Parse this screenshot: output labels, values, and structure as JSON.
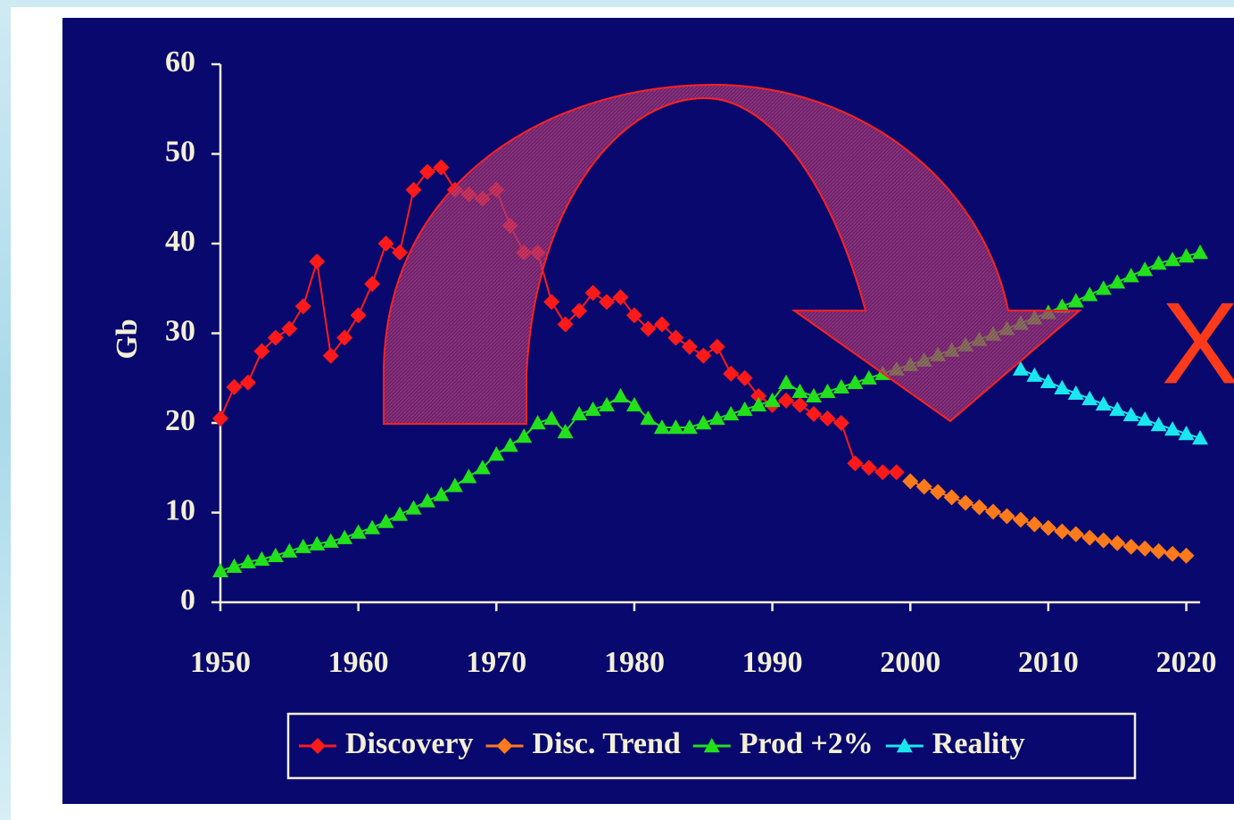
{
  "chart_data": {
    "type": "line",
    "y_label": "Gb",
    "annotation": "X",
    "xlim": [
      1950,
      2021
    ],
    "xticks": [
      1950,
      1960,
      1970,
      1980,
      1990,
      2000,
      2010,
      2020
    ],
    "ylim": [
      0,
      60
    ],
    "yticks": [
      0,
      10,
      20,
      30,
      40,
      50,
      60
    ],
    "series": [
      {
        "name": "Discovery",
        "color": "#ff1a1a",
        "marker": "diamond",
        "x": [
          1950,
          1951,
          1952,
          1953,
          1954,
          1955,
          1956,
          1957,
          1958,
          1959,
          1960,
          1961,
          1962,
          1963,
          1964,
          1965,
          1966,
          1967,
          1968,
          1969,
          1970,
          1971,
          1972,
          1973,
          1974,
          1975,
          1976,
          1977,
          1978,
          1979,
          1980,
          1981,
          1982,
          1983,
          1984,
          1985,
          1986,
          1987,
          1988,
          1989,
          1990,
          1991,
          1992,
          1993,
          1994,
          1995,
          1996,
          1997,
          1998,
          1999
        ],
        "values": [
          20.5,
          24,
          24.5,
          28,
          29.5,
          30.5,
          33,
          38,
          27.5,
          29.5,
          32,
          35.5,
          40,
          39,
          46,
          48,
          48.5,
          46,
          45.5,
          45,
          46,
          42,
          39,
          39,
          33.5,
          31,
          32.5,
          34.5,
          33.5,
          34,
          32,
          30.5,
          31,
          29.5,
          28.5,
          27.5,
          28.5,
          25.5,
          25,
          23,
          22,
          22.5,
          22,
          21,
          20.5,
          20,
          15.5,
          15,
          14.5,
          14.5
        ]
      },
      {
        "name": "Disc. Trend",
        "color": "#ff7a1a",
        "marker": "diamond",
        "x": [
          2000,
          2001,
          2002,
          2003,
          2004,
          2005,
          2006,
          2007,
          2008,
          2009,
          2010,
          2011,
          2012,
          2013,
          2014,
          2015,
          2016,
          2017,
          2018,
          2019,
          2020
        ],
        "values": [
          13.5,
          12.9,
          12.3,
          11.7,
          11.1,
          10.6,
          10.1,
          9.6,
          9.2,
          8.7,
          8.3,
          7.9,
          7.6,
          7.2,
          6.9,
          6.6,
          6.2,
          6,
          5.7,
          5.4,
          5.2
        ]
      },
      {
        "name": "Prod +2%",
        "color": "#22e01a",
        "marker": "triangle",
        "x": [
          1950,
          1951,
          1952,
          1953,
          1954,
          1955,
          1956,
          1957,
          1958,
          1959,
          1960,
          1961,
          1962,
          1963,
          1964,
          1965,
          1966,
          1967,
          1968,
          1969,
          1970,
          1971,
          1972,
          1973,
          1974,
          1975,
          1976,
          1977,
          1978,
          1979,
          1980,
          1981,
          1982,
          1983,
          1984,
          1985,
          1986,
          1987,
          1988,
          1989,
          1990,
          1991,
          1992,
          1993,
          1994,
          1995,
          1996,
          1997,
          1998,
          1999,
          2000,
          2001,
          2002,
          2003,
          2004,
          2005,
          2006,
          2007,
          2008,
          2009,
          2010,
          2011,
          2012,
          2013,
          2014,
          2015,
          2016,
          2017,
          2018,
          2019,
          2020,
          2021
        ],
        "values": [
          3.5,
          4,
          4.5,
          4.8,
          5.2,
          5.7,
          6.2,
          6.5,
          6.8,
          7.2,
          7.8,
          8.3,
          9,
          9.8,
          10.5,
          11.3,
          12,
          13,
          14,
          15,
          16.5,
          17.5,
          18.5,
          20,
          20.5,
          19,
          21,
          21.5,
          22,
          23,
          22,
          20.5,
          19.5,
          19.5,
          19.5,
          20,
          20.5,
          21,
          21.5,
          22,
          22.5,
          24.5,
          23.5,
          23,
          23.5,
          24,
          24.5,
          25,
          25.5,
          26,
          26.5,
          27,
          27.6,
          28.1,
          28.7,
          29.3,
          29.9,
          30.5,
          31.1,
          31.7,
          32.3,
          33,
          33.6,
          34.3,
          35,
          35.7,
          36.4,
          37.1,
          37.8,
          38.2,
          38.6,
          39
        ]
      },
      {
        "name": "Reality",
        "color": "#1ae6f0",
        "marker": "triangle",
        "x": [
          2008,
          2009,
          2010,
          2011,
          2012,
          2013,
          2014,
          2015,
          2016,
          2017,
          2018,
          2019,
          2020,
          2021
        ],
        "values": [
          26,
          25.3,
          24.6,
          23.9,
          23.3,
          22.7,
          22.1,
          21.5,
          20.9,
          20.4,
          19.8,
          19.3,
          18.8,
          18.3
        ]
      }
    ]
  }
}
